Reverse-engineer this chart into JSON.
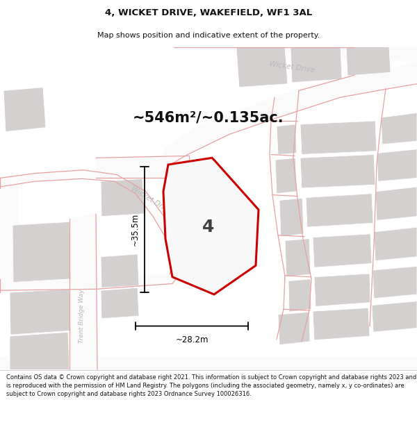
{
  "title_line1": "4, WICKET DRIVE, WAKEFIELD, WF1 3AL",
  "title_line2": "Map shows position and indicative extent of the property.",
  "area_label": "~546m²/~0.135ac.",
  "property_number": "4",
  "dim_width": "~28.2m",
  "dim_height": "~35.5m",
  "footer_text": "Contains OS data © Crown copyright and database right 2021. This information is subject to Crown copyright and database rights 2023 and is reproduced with the permission of HM Land Registry. The polygons (including the associated geometry, namely x, y co-ordinates) are subject to Crown copyright and database rights 2023 Ordnance Survey 100026316.",
  "map_bg": "#efeded",
  "building_color": "#d4d0d0",
  "building_edge": "#c8c4c4",
  "property_fill": "#f8f8f8",
  "property_edge": "#cc0000",
  "road_fill": "#fafafa",
  "pink": "#e8a0a0",
  "road_label_color": "#b8b8b8",
  "dim_color": "#111111",
  "title_color": "#111111",
  "footer_color": "#111111",
  "title_fontsize": 9.5,
  "subtitle_fontsize": 8.0,
  "area_fontsize": 15,
  "prop_num_fontsize": 18,
  "dim_fontsize": 8.5,
  "road_label_fontsize": 7.5,
  "footer_fontsize": 6.0
}
